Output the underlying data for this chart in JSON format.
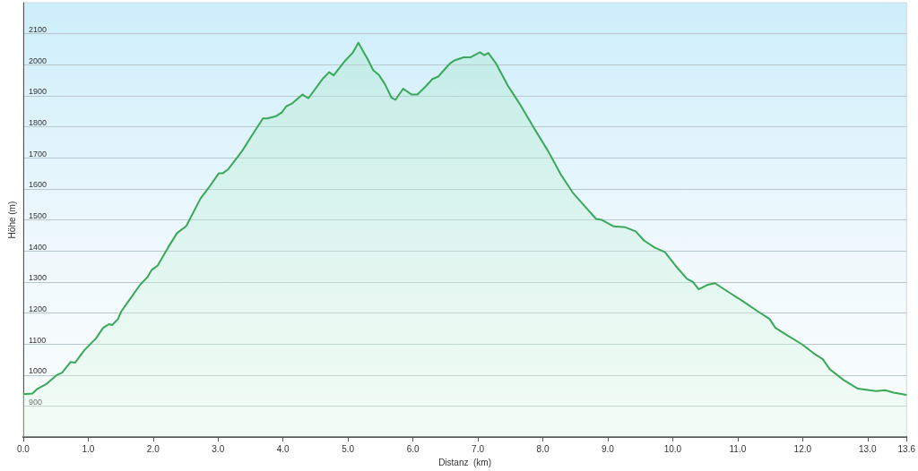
{
  "chart_data": {
    "type": "area",
    "xlabel": "Distanz  (km)",
    "ylabel": "Höhe (m)",
    "xlim": [
      0,
      13.6
    ],
    "ylim": [
      800,
      2200
    ],
    "xticks": [
      {
        "value": 0,
        "label": "0.0"
      },
      {
        "value": 1,
        "label": "1.0"
      },
      {
        "value": 2,
        "label": "2.0"
      },
      {
        "value": 3,
        "label": "3.0"
      },
      {
        "value": 4,
        "label": "4.0"
      },
      {
        "value": 5,
        "label": "5.0"
      },
      {
        "value": 6,
        "label": "6.0"
      },
      {
        "value": 7,
        "label": "7.0"
      },
      {
        "value": 8,
        "label": "8.0"
      },
      {
        "value": 9,
        "label": "9.0"
      },
      {
        "value": 10,
        "label": "10.0"
      },
      {
        "value": 11,
        "label": "11.0"
      },
      {
        "value": 12,
        "label": "12.0"
      },
      {
        "value": 13,
        "label": "13.0"
      },
      {
        "value": 13.6,
        "label": "13.6"
      }
    ],
    "yticks": [
      900,
      1000,
      1100,
      1200,
      1300,
      1400,
      1500,
      1600,
      1700,
      1800,
      1900,
      2000,
      2100
    ],
    "grid": "y",
    "marker": "none",
    "line_style": "solid",
    "series": [
      {
        "color": "#3aa85a",
        "x": [
          0,
          0.14,
          0.21,
          0.35,
          0.51,
          0.6,
          0.73,
          0.8,
          0.94,
          1.12,
          1.23,
          1.32,
          1.37,
          1.46,
          1.51,
          1.62,
          1.8,
          1.91,
          1.98,
          2.07,
          2.23,
          2.37,
          2.51,
          2.73,
          2.85,
          3.01,
          3.07,
          3.16,
          3.37,
          3.53,
          3.69,
          3.76,
          3.89,
          3.98,
          4.05,
          4.14,
          4.3,
          4.39,
          4.62,
          4.71,
          4.78,
          4.96,
          5.07,
          5.16,
          5.3,
          5.39,
          5.48,
          5.57,
          5.67,
          5.73,
          5.85,
          5.98,
          6.07,
          6.21,
          6.3,
          6.39,
          6.53,
          6.57,
          6.64,
          6.78,
          6.89,
          7.03,
          7.1,
          7.16,
          7.28,
          7.46,
          7.64,
          7.87,
          8.08,
          8.28,
          8.46,
          8.64,
          8.82,
          8.91,
          9.09,
          9.27,
          9.43,
          9.56,
          9.72,
          9.88,
          10.04,
          10.22,
          10.31,
          10.4,
          10.54,
          10.65,
          10.86,
          11.08,
          11.31,
          11.49,
          11.58,
          11.76,
          11.99,
          12.17,
          12.31,
          12.42,
          12.63,
          12.85,
          13.13,
          13.27,
          13.4,
          13.6
        ],
        "values": [
          938,
          940,
          954,
          970,
          999,
          1008,
          1042,
          1040,
          1080,
          1118,
          1152,
          1164,
          1161,
          1181,
          1205,
          1238,
          1291,
          1315,
          1339,
          1353,
          1411,
          1458,
          1480,
          1569,
          1602,
          1650,
          1650,
          1664,
          1722,
          1775,
          1827,
          1827,
          1834,
          1846,
          1866,
          1875,
          1904,
          1892,
          1957,
          1976,
          1966,
          2014,
          2038,
          2071,
          2019,
          1982,
          1966,
          1937,
          1894,
          1887,
          1923,
          1904,
          1904,
          1933,
          1954,
          1962,
          1995,
          2004,
          2014,
          2024,
          2024,
          2040,
          2031,
          2038,
          2004,
          1933,
          1875,
          1794,
          1722,
          1645,
          1588,
          1545,
          1503,
          1500,
          1479,
          1476,
          1463,
          1433,
          1411,
          1396,
          1353,
          1310,
          1300,
          1276,
          1291,
          1296,
          1267,
          1238,
          1205,
          1181,
          1152,
          1128,
          1099,
          1070,
          1051,
          1018,
          984,
          956,
          948,
          951,
          943,
          936
        ]
      }
    ]
  }
}
